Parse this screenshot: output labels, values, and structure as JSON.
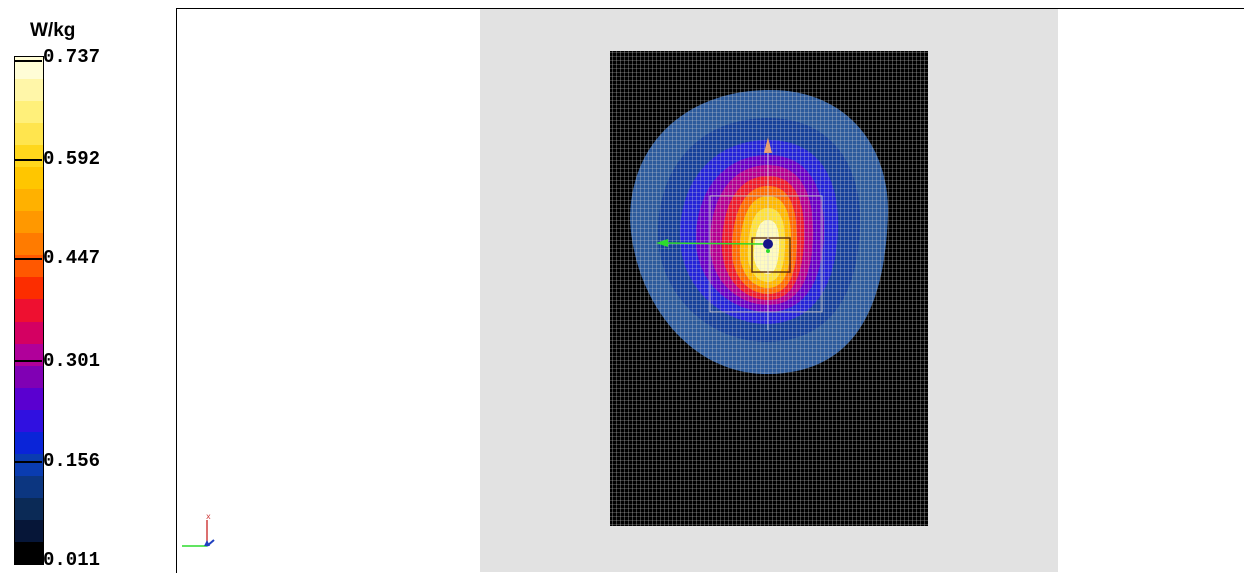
{
  "legend": {
    "unit": "W/kg",
    "ticks": [
      "0.737",
      "0.592",
      "0.447",
      "0.301",
      "0.156",
      "0.011"
    ],
    "colors": [
      "#fffdd6",
      "#fff6a8",
      "#fff07a",
      "#ffe54e",
      "#ffd71c",
      "#ffc600",
      "#ffb100",
      "#ff9800",
      "#ff7b00",
      "#ff5800",
      "#fc2d00",
      "#ee1030",
      "#d40062",
      "#b0009a",
      "#8000b4",
      "#5a00d0",
      "#3010e0",
      "#0a24d8",
      "#0a3cb0",
      "#0c3680",
      "#0b2a56",
      "#061638",
      "#000000"
    ]
  },
  "plot": {
    "triad_x_label": "x",
    "colors": {
      "phantom": "#e2e2e2",
      "grid_background": "#000000",
      "grid_lines": "#dcdcdc",
      "arrow_green": "#2ddb2d",
      "marker_blue": "#151589"
    }
  }
}
